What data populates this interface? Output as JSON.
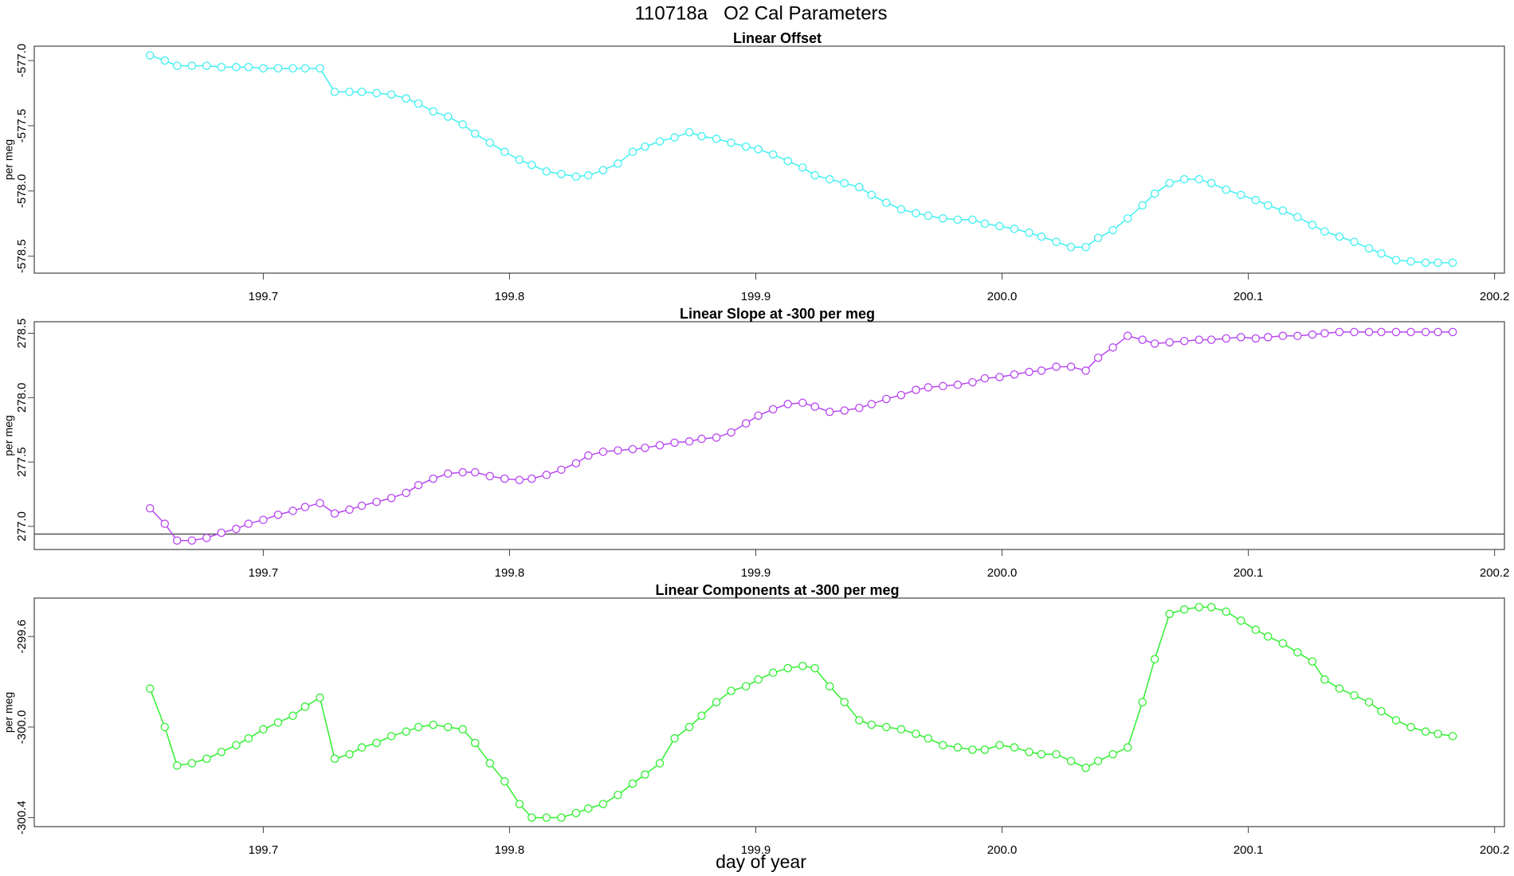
{
  "title": "110718a   O2 Cal Parameters",
  "xlabel": "day of year",
  "chart_data": [
    {
      "type": "scatter",
      "title": "Linear Offset",
      "ylabel": "per meg",
      "color": "#40f0f0",
      "x": [
        199.654,
        199.66,
        199.665,
        199.671,
        199.677,
        199.683,
        199.689,
        199.694,
        199.7,
        199.706,
        199.712,
        199.717,
        199.723,
        199.729,
        199.735,
        199.74,
        199.746,
        199.752,
        199.758,
        199.763,
        199.769,
        199.775,
        199.781,
        199.786,
        199.792,
        199.798,
        199.804,
        199.809,
        199.815,
        199.821,
        199.827,
        199.832,
        199.838,
        199.844,
        199.85,
        199.855,
        199.861,
        199.867,
        199.873,
        199.878,
        199.884,
        199.89,
        199.896,
        199.901,
        199.907,
        199.913,
        199.919,
        199.924,
        199.93,
        199.936,
        199.942,
        199.947,
        199.953,
        199.959,
        199.965,
        199.97,
        199.976,
        199.982,
        199.988,
        199.993,
        199.999,
        200.005,
        200.011,
        200.016,
        200.022,
        200.028,
        200.034,
        200.039,
        200.045,
        200.051,
        200.057,
        200.062,
        200.068,
        200.074,
        200.08,
        200.085,
        200.091,
        200.097,
        200.103,
        200.108,
        200.114,
        200.12,
        200.126,
        200.131,
        200.137,
        200.143,
        200.149,
        200.154,
        200.16,
        200.166,
        200.172,
        200.177,
        200.183
      ],
      "values": [
        -576.96,
        -577.0,
        -577.04,
        -577.04,
        -577.04,
        -577.05,
        -577.05,
        -577.05,
        -577.06,
        -577.06,
        -577.06,
        -577.06,
        -577.06,
        -577.24,
        -577.24,
        -577.24,
        -577.25,
        -577.26,
        -577.29,
        -577.33,
        -577.39,
        -577.43,
        -577.49,
        -577.56,
        -577.63,
        -577.7,
        -577.76,
        -577.8,
        -577.85,
        -577.87,
        -577.89,
        -577.88,
        -577.84,
        -577.79,
        -577.7,
        -577.66,
        -577.62,
        -577.59,
        -577.55,
        -577.58,
        -577.6,
        -577.63,
        -577.66,
        -577.68,
        -577.72,
        -577.77,
        -577.82,
        -577.88,
        -577.91,
        -577.94,
        -577.97,
        -578.03,
        -578.09,
        -578.14,
        -578.17,
        -578.19,
        -578.21,
        -578.22,
        -578.22,
        -578.25,
        -578.27,
        -578.29,
        -578.32,
        -578.35,
        -578.39,
        -578.43,
        -578.43,
        -578.36,
        -578.3,
        -578.21,
        -578.11,
        -578.02,
        -577.94,
        -577.91,
        -577.91,
        -577.94,
        -577.99,
        -578.03,
        -578.07,
        -578.11,
        -578.15,
        -578.2,
        -578.26,
        -578.31,
        -578.35,
        -578.39,
        -578.44,
        -578.48,
        -578.53,
        -578.54,
        -578.55,
        -578.55,
        -578.55
      ],
      "xlim": [
        199.607,
        200.204
      ],
      "xticks": [
        199.7,
        199.8,
        199.9,
        {
          "value": 200.0,
          "label": "200.0"
        },
        200.1,
        200.2
      ],
      "ylim": [
        -578.63,
        -576.89
      ],
      "yticks": [
        {
          "value": -577.0,
          "label": "-577.0"
        },
        -577.5,
        {
          "value": -578.0,
          "label": "-578.0"
        },
        -578.5
      ]
    },
    {
      "type": "scatter",
      "title": "Linear Slope at -300 per meg",
      "ylabel": "per meg",
      "color": "#b848f0",
      "hline": 276.94,
      "x": [
        199.654,
        199.66,
        199.665,
        199.671,
        199.677,
        199.683,
        199.689,
        199.694,
        199.7,
        199.706,
        199.712,
        199.717,
        199.723,
        199.729,
        199.735,
        199.74,
        199.746,
        199.752,
        199.758,
        199.763,
        199.769,
        199.775,
        199.781,
        199.786,
        199.792,
        199.798,
        199.804,
        199.809,
        199.815,
        199.821,
        199.827,
        199.832,
        199.838,
        199.844,
        199.85,
        199.855,
        199.861,
        199.867,
        199.873,
        199.878,
        199.884,
        199.89,
        199.896,
        199.901,
        199.907,
        199.913,
        199.919,
        199.924,
        199.93,
        199.936,
        199.942,
        199.947,
        199.953,
        199.959,
        199.965,
        199.97,
        199.976,
        199.982,
        199.988,
        199.993,
        199.999,
        200.005,
        200.011,
        200.016,
        200.022,
        200.028,
        200.034,
        200.039,
        200.045,
        200.051,
        200.057,
        200.062,
        200.068,
        200.074,
        200.08,
        200.085,
        200.091,
        200.097,
        200.103,
        200.108,
        200.114,
        200.12,
        200.126,
        200.131,
        200.137,
        200.143,
        200.149,
        200.154,
        200.16,
        200.166,
        200.172,
        200.177,
        200.183
      ],
      "values": [
        277.14,
        277.02,
        276.89,
        276.89,
        276.91,
        276.95,
        276.98,
        277.02,
        277.05,
        277.09,
        277.12,
        277.15,
        277.18,
        277.1,
        277.13,
        277.16,
        277.19,
        277.22,
        277.26,
        277.32,
        277.37,
        277.41,
        277.42,
        277.42,
        277.39,
        277.37,
        277.36,
        277.37,
        277.4,
        277.44,
        277.49,
        277.55,
        277.58,
        277.59,
        277.6,
        277.61,
        277.63,
        277.65,
        277.66,
        277.68,
        277.69,
        277.73,
        277.8,
        277.86,
        277.91,
        277.95,
        277.96,
        277.93,
        277.89,
        277.9,
        277.92,
        277.95,
        277.99,
        278.02,
        278.06,
        278.08,
        278.09,
        278.1,
        278.12,
        278.15,
        278.16,
        278.18,
        278.2,
        278.21,
        278.24,
        278.24,
        278.21,
        278.31,
        278.39,
        278.48,
        278.45,
        278.42,
        278.43,
        278.44,
        278.45,
        278.45,
        278.46,
        278.47,
        278.46,
        278.47,
        278.48,
        278.48,
        278.49,
        278.5,
        278.51,
        278.51,
        278.51,
        278.51,
        278.51,
        278.51,
        278.51,
        278.51,
        278.51
      ],
      "xlim": [
        199.607,
        200.204
      ],
      "xticks": [
        199.7,
        199.8,
        199.9,
        {
          "value": 200.0,
          "label": "200.0"
        },
        200.1,
        200.2
      ],
      "ylim": [
        276.82,
        278.59
      ],
      "yticks": [
        {
          "value": 277.0,
          "label": "277.0"
        },
        277.5,
        {
          "value": 278.0,
          "label": "278.0"
        },
        278.5
      ]
    },
    {
      "type": "scatter",
      "title": "Linear Components at -300 per meg",
      "ylabel": "per meg",
      "color": "#30f030",
      "x": [
        199.654,
        199.66,
        199.665,
        199.671,
        199.677,
        199.683,
        199.689,
        199.694,
        199.7,
        199.706,
        199.712,
        199.717,
        199.723,
        199.729,
        199.735,
        199.74,
        199.746,
        199.752,
        199.758,
        199.763,
        199.769,
        199.775,
        199.781,
        199.786,
        199.792,
        199.798,
        199.804,
        199.809,
        199.815,
        199.821,
        199.827,
        199.832,
        199.838,
        199.844,
        199.85,
        199.855,
        199.861,
        199.867,
        199.873,
        199.878,
        199.884,
        199.89,
        199.896,
        199.901,
        199.907,
        199.913,
        199.919,
        199.924,
        199.93,
        199.936,
        199.942,
        199.947,
        199.953,
        199.959,
        199.965,
        199.97,
        199.976,
        199.982,
        199.988,
        199.993,
        199.999,
        200.005,
        200.011,
        200.016,
        200.022,
        200.028,
        200.034,
        200.039,
        200.045,
        200.051,
        200.057,
        200.062,
        200.068,
        200.074,
        200.08,
        200.085,
        200.091,
        200.097,
        200.103,
        200.108,
        200.114,
        200.12,
        200.126,
        200.131,
        200.137,
        200.143,
        200.149,
        200.154,
        200.16,
        200.166,
        200.172,
        200.177,
        200.183
      ],
      "values": [
        -299.83,
        -300.0,
        -300.17,
        -300.16,
        -300.14,
        -300.11,
        -300.08,
        -300.05,
        -300.01,
        -299.98,
        -299.95,
        -299.91,
        -299.87,
        -300.14,
        -300.12,
        -300.09,
        -300.07,
        -300.04,
        -300.02,
        -300.0,
        -299.99,
        -300.0,
        -300.01,
        -300.07,
        -300.16,
        -300.24,
        -300.34,
        -300.4,
        -300.4,
        -300.4,
        -300.38,
        -300.36,
        -300.34,
        -300.3,
        -300.25,
        -300.21,
        -300.16,
        -300.05,
        -300.0,
        -299.95,
        -299.89,
        -299.84,
        -299.82,
        -299.79,
        -299.76,
        -299.74,
        -299.73,
        -299.74,
        -299.82,
        -299.89,
        -299.97,
        -299.99,
        -300.0,
        -300.01,
        -300.03,
        -300.05,
        -300.08,
        -300.09,
        -300.1,
        -300.1,
        -300.08,
        -300.09,
        -300.11,
        -300.12,
        -300.12,
        -300.15,
        -300.18,
        -300.15,
        -300.12,
        -300.09,
        -299.89,
        -299.7,
        -299.5,
        -299.48,
        -299.47,
        -299.47,
        -299.49,
        -299.53,
        -299.57,
        -299.6,
        -299.63,
        -299.67,
        -299.71,
        -299.79,
        -299.83,
        -299.86,
        -299.89,
        -299.93,
        -299.97,
        -300.0,
        -300.02,
        -300.03,
        -300.04
      ],
      "xlim": [
        199.607,
        200.204
      ],
      "xticks": [
        199.7,
        199.8,
        199.9,
        {
          "value": 200.0,
          "label": "200.0"
        },
        200.1,
        200.2
      ],
      "ylim": [
        -300.44,
        -299.43
      ],
      "yticks": [
        -299.6,
        {
          "value": -300.0,
          "label": "-300.0"
        },
        -300.4
      ]
    }
  ]
}
